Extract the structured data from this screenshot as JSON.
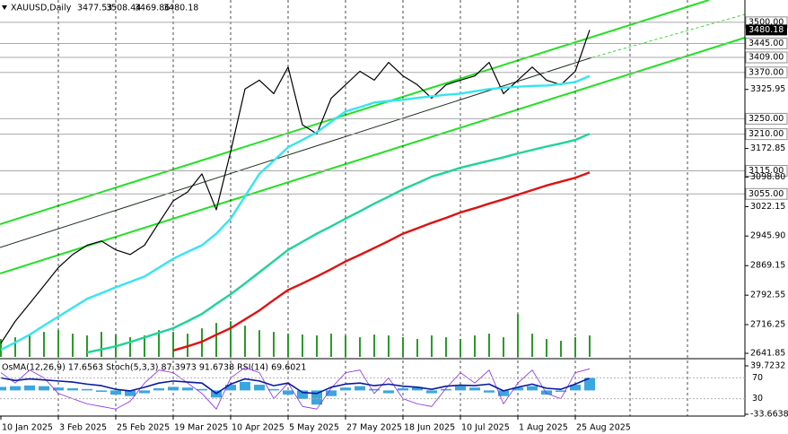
{
  "chart_data": {
    "type": "line",
    "title": "XAUUSD,Daily",
    "ohlc": [
      3477.53,
      3508.44,
      3469.86,
      3480.18
    ],
    "categories": [
      "10 Jan 2025",
      null,
      null,
      null,
      "3 Feb 2025",
      null,
      null,
      null,
      "25 Feb 2025",
      null,
      null,
      null,
      "19 Mar 2025",
      null,
      null,
      null,
      "10 Apr 2025",
      null,
      null,
      null,
      "5 May 2025",
      null,
      null,
      null,
      "27 May 2025",
      null,
      null,
      null,
      "18 Jun 2025",
      null,
      null,
      null,
      "10 Jul 2025",
      null,
      null,
      null,
      "1 Aug 2025",
      null,
      null,
      null,
      "25 Aug 2025",
      null
    ],
    "series": [
      {
        "name": "XAUUSD",
        "color": "#000000",
        "values": [
          2668,
          2725,
          2771,
          2817,
          2864,
          2898,
          2922,
          2933,
          2910,
          2898,
          2922,
          2980,
          3037,
          3060,
          3107,
          3014,
          3165,
          3327,
          3350,
          3315,
          3384,
          3234,
          3211,
          3303,
          3338,
          3373,
          3350,
          3396,
          3361,
          3338,
          3303,
          3338,
          3350,
          3361,
          3396,
          3315,
          3350,
          3384,
          3350,
          3338,
          3373,
          3480.18
        ]
      },
      {
        "name": "MA",
        "color": "#33e6f0",
        "values": [
          2651,
          2670,
          2690,
          2714,
          2737,
          2760,
          2783,
          2798,
          2813,
          2827,
          2841,
          2864,
          2887,
          2905,
          2922,
          2952,
          2991,
          3049,
          3107,
          3141,
          3176,
          3195,
          3215,
          3242,
          3269,
          3280,
          3292,
          3296,
          3299,
          3304,
          3308,
          3312,
          3315,
          3321,
          3327,
          3330,
          3333,
          3335,
          3336,
          3340,
          3345,
          3361
        ]
      },
      {
        "name": "MA",
        "color": "#1fd39a",
        "values": [
          null,
          null,
          null,
          null,
          null,
          null,
          2644,
          2652,
          2660,
          2671,
          2683,
          2695,
          2707,
          2725,
          2744,
          2770,
          2795,
          2823,
          2852,
          2881,
          2910,
          2931,
          2952,
          2971,
          2991,
          3010,
          3030,
          3048,
          3067,
          3083,
          3100,
          3111,
          3123,
          3132,
          3141,
          3150,
          3160,
          3169,
          3178,
          3186,
          3195,
          3211
        ]
      },
      {
        "name": "MA",
        "color": "#e01010",
        "values": [
          null,
          null,
          null,
          null,
          null,
          null,
          null,
          null,
          null,
          null,
          null,
          null,
          2649,
          2660,
          2672,
          2690,
          2707,
          2730,
          2753,
          2780,
          2806,
          2823,
          2841,
          2860,
          2880,
          2897,
          2915,
          2933,
          2952,
          2966,
          2980,
          2993,
          3007,
          3018,
          3030,
          3041,
          3053,
          3065,
          3077,
          3087,
          3097,
          3111
        ]
      }
    ],
    "ylim": [
      2632.6,
      3557.8
    ],
    "yticks": [
      {
        "value": 3325.95,
        "label": "3325.95"
      },
      {
        "value": 3172.85,
        "label": "3172.85"
      },
      {
        "value": 3098.8,
        "label": "3098.80"
      },
      {
        "value": 3022.15,
        "label": "3022.15"
      },
      {
        "value": 2945.9,
        "label": "2945.90"
      },
      {
        "value": 2869.15,
        "label": "2869.15"
      },
      {
        "value": 2792.55,
        "label": "2792.55"
      },
      {
        "value": 2716.25,
        "label": "2716.25"
      },
      {
        "value": 2641.85,
        "label": "2641.85"
      }
    ],
    "levels": [
      {
        "value": 3500,
        "label": "3500.00"
      },
      {
        "value": 3445,
        "label": "3445.00"
      },
      {
        "value": 3409,
        "label": "3409.00"
      },
      {
        "value": 3370,
        "label": "3370.00"
      },
      {
        "value": 3250,
        "label": "3250.00"
      },
      {
        "value": 3210,
        "label": "3210.00"
      },
      {
        "value": 3115,
        "label": "3115.00"
      },
      {
        "value": 3055,
        "label": "3055.00"
      }
    ],
    "last_price": {
      "value": 3480.18,
      "label": "3480.18"
    },
    "volume": {
      "color": "#2a9a2a",
      "vlim": [
        0,
        400
      ],
      "values": [
        20,
        22,
        25,
        28,
        30,
        26,
        24,
        28,
        25,
        22,
        24,
        30,
        28,
        26,
        32,
        38,
        40,
        35,
        30,
        28,
        26,
        25,
        24,
        26,
        24,
        22,
        25,
        24,
        22,
        20,
        24,
        22,
        20,
        24,
        26,
        22,
        48,
        26,
        20,
        18,
        22,
        24
      ]
    },
    "oscillator": {
      "title": "OsMA(12,26,9) 17.6563  Stoch(5,3,3) 87.3973 91.6738  RSI(14) 69.6021",
      "osma_color": "#3aa6e0",
      "rsi_color": "#0a1aa0",
      "stoch_color": "#8a2be2",
      "osma_lim": [
        -33.6638,
        39.7232
      ],
      "osma_ticks": [
        39.7232,
        -33.6638
      ],
      "rsi_lim": [
        0,
        100
      ],
      "rsi_ticks": [
        70,
        30
      ],
      "osma": [
        5,
        6,
        7,
        6,
        4,
        3,
        2,
        -2,
        -6,
        -8,
        -4,
        3,
        5,
        4,
        2,
        -10,
        8,
        12,
        8,
        2,
        -6,
        -12,
        -20,
        -8,
        4,
        6,
        2,
        -4,
        3,
        5,
        -4,
        2,
        6,
        4,
        -3,
        -8,
        4,
        6,
        -6,
        -2,
        8,
        17.6563
      ],
      "rsi": [
        70,
        65,
        68,
        66,
        64,
        62,
        58,
        55,
        48,
        45,
        52,
        60,
        64,
        62,
        60,
        40,
        58,
        68,
        64,
        55,
        60,
        42,
        40,
        52,
        58,
        60,
        55,
        58,
        54,
        52,
        48,
        54,
        56,
        55,
        58,
        45,
        52,
        58,
        50,
        48,
        58,
        69.6021
      ],
      "stoch": [
        80,
        60,
        85,
        70,
        40,
        30,
        20,
        15,
        10,
        25,
        60,
        85,
        80,
        60,
        40,
        10,
        70,
        90,
        80,
        30,
        60,
        15,
        10,
        50,
        80,
        85,
        40,
        70,
        30,
        20,
        15,
        50,
        80,
        60,
        85,
        20,
        60,
        85,
        40,
        30,
        80,
        87.3973
      ]
    }
  }
}
